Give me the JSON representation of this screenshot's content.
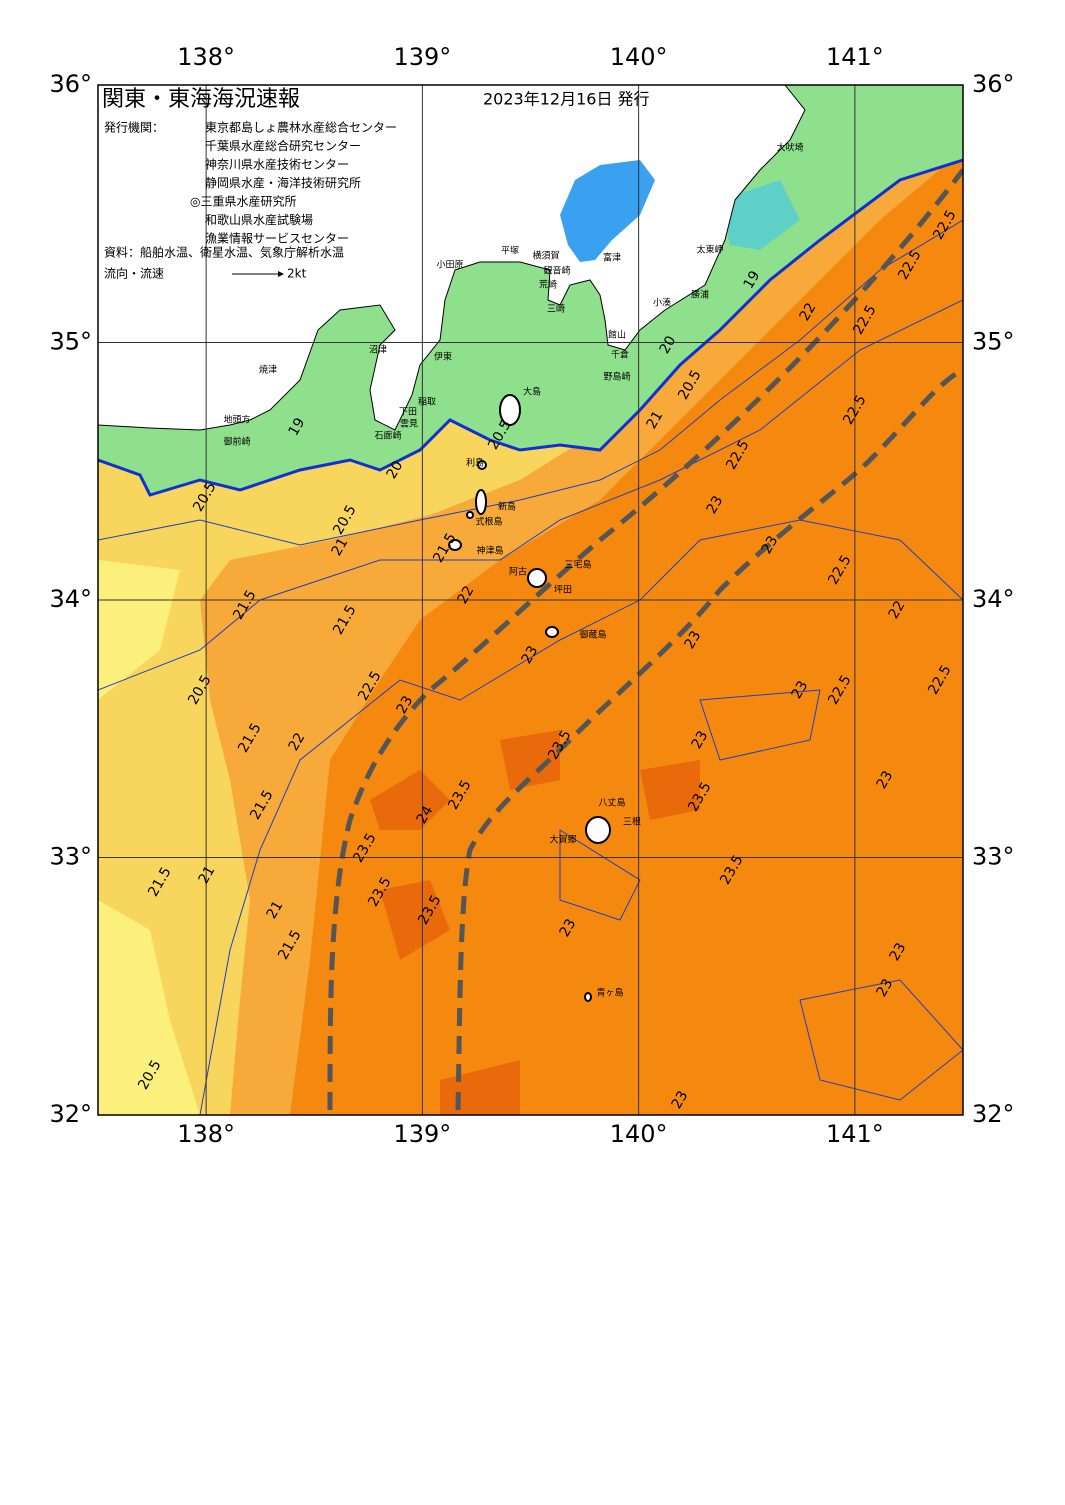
{
  "header": {
    "title": "関東・東海海況速報",
    "date": "2023年12月16日 発行",
    "issuer_label": "発行機関：",
    "issuers": [
      "東京都島しょ農林水産総合センター",
      "千葉県水産総合研究センター",
      "神奈川県水産技術センター",
      "静岡県水産・海洋技術研究所",
      "◎三重県水産研究所",
      "和歌山県水産試験場",
      "漁業情報サービスセンター"
    ],
    "source": "資料：船舶水温、衛星水温、気象庁解析水温",
    "legend_label": "流向・流速",
    "legend_speed": "2kt"
  },
  "map": {
    "lonlim": [
      137.5,
      141.5
    ],
    "latlim": [
      32,
      36
    ],
    "lon_ticks": [
      {
        "value": 138,
        "label": "138°"
      },
      {
        "value": 139,
        "label": "139°"
      },
      {
        "value": 140,
        "label": "140°"
      },
      {
        "value": 141,
        "label": "141°"
      }
    ],
    "lat_ticks": [
      {
        "value": 32,
        "label": "32°"
      },
      {
        "value": 33,
        "label": "33°"
      },
      {
        "value": 34,
        "label": "34°"
      },
      {
        "value": 35,
        "label": "35°"
      },
      {
        "value": 36,
        "label": "36°"
      }
    ]
  },
  "place_names": [
    "大吠埼",
    "太東岬",
    "勝浦",
    "小湊",
    "館山",
    "千倉",
    "野島崎",
    "富津",
    "横須賀",
    "観音崎",
    "平塚",
    "小田原",
    "荒崎",
    "三崎",
    "沼津",
    "伊東",
    "焼津",
    "大島",
    "稲取",
    "下田",
    "雲見",
    "石廊崎",
    "地頭方",
    "御前崎",
    "利島",
    "新島",
    "式根島",
    "神津島",
    "三宅島",
    "阿古",
    "坪田",
    "御蔵島",
    "八丈島",
    "三根",
    "大賀郷",
    "青ヶ島"
  ],
  "contour_labels": [
    "20.5",
    "21",
    "21.5",
    "21.5",
    "20.5",
    "21.5",
    "22",
    "21.5",
    "22.5",
    "23",
    "22",
    "21.5",
    "20.5",
    "20.5",
    "20",
    "19",
    "19",
    "20",
    "20.5",
    "21",
    "22",
    "22.5",
    "22.5",
    "22.5",
    "22.5",
    "22.5",
    "23",
    "23",
    "22.5",
    "23",
    "23",
    "23.5",
    "23",
    "23",
    "22.5",
    "22.5",
    "22",
    "23",
    "23.5",
    "24",
    "23.5",
    "23.5",
    "23.5",
    "21",
    "21.5",
    "21",
    "21.5",
    "23.5",
    "23.5",
    "23",
    "23",
    "23",
    "20.5",
    "23"
  ]
}
